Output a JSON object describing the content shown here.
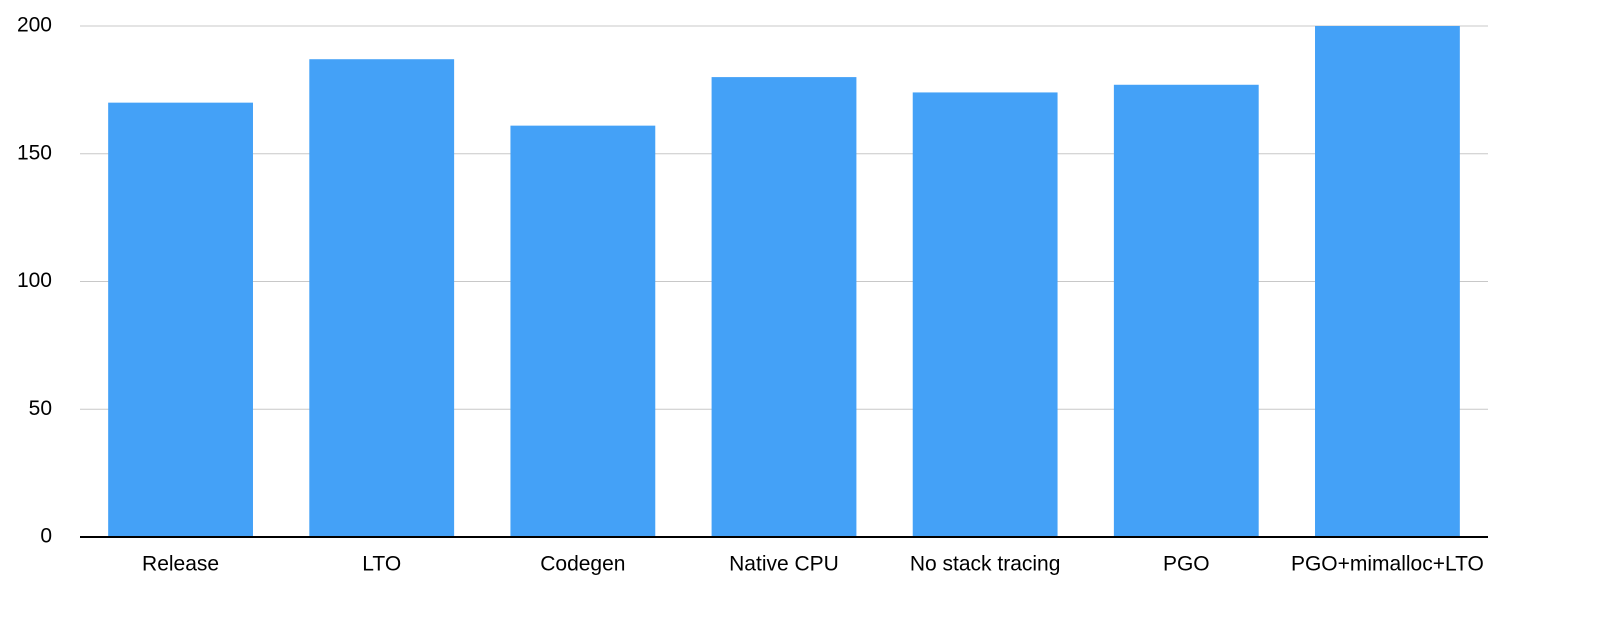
{
  "chart_data": {
    "type": "bar",
    "categories": [
      "Release",
      "LTO",
      "Codegen",
      "Native CPU",
      "No stack tracing",
      "PGO",
      "PGO+mimalloc+LTO"
    ],
    "values": [
      170,
      187,
      161,
      180,
      174,
      177,
      200
    ],
    "color": "#44a1f7",
    "ylim": [
      0,
      200
    ],
    "yticks": [
      0,
      50,
      100,
      150,
      200
    ],
    "grid": true
  }
}
